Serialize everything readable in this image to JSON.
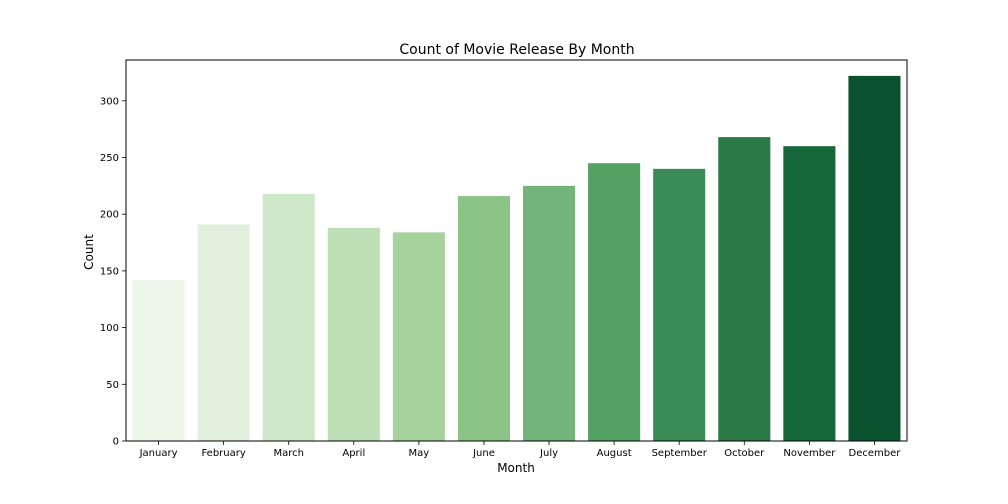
{
  "chart_data": {
    "type": "bar",
    "title": "Count of Movie Release By Month",
    "xlabel": "Month",
    "ylabel": "Count",
    "categories": [
      "January",
      "February",
      "March",
      "April",
      "May",
      "June",
      "July",
      "August",
      "September",
      "October",
      "November",
      "December"
    ],
    "values": [
      142,
      191,
      218,
      188,
      184,
      216,
      225,
      245,
      240,
      268,
      260,
      322
    ],
    "colors": [
      "#ebf6e8",
      "#e0f0dc",
      "#cfe8c9",
      "#bcdfb6",
      "#a5d29d",
      "#8cc386",
      "#73b47a",
      "#54a164",
      "#3b8b56",
      "#2a7946",
      "#16673a",
      "#0b532e"
    ],
    "ylim": [
      0,
      336
    ],
    "yticks": [
      0,
      50,
      100,
      150,
      200,
      250,
      300
    ],
    "grid": false,
    "legend": "none"
  }
}
